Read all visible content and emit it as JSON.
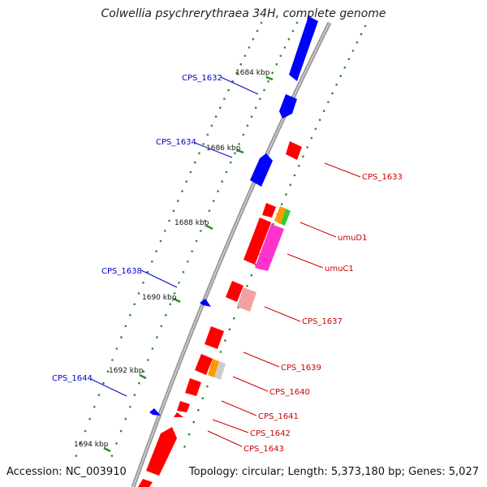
{
  "title": "Colwellia psychrerythraea 34H, complete genome",
  "footer": {
    "accession": "Accession: NC_003910",
    "summary": "Topology: circular; Length: 5,373,180 bp; Genes: 5,027"
  },
  "colors": {
    "backbone": "#8c8c8c",
    "forward_strand": "#0000ff",
    "reverse_strand": "#ff0000",
    "forward_label": "#0000cc",
    "reverse_label": "#cc0000",
    "tick": "#2b8a2b",
    "rrna_orange": "#ff9900",
    "rrna_green": "#33cc33",
    "magenta": "#ff33cc",
    "pink": "#f4a0a0",
    "gray": "#cccccc"
  },
  "kbp_ticks": [
    "1684 kbp",
    "1686 kbp",
    "1688 kbp",
    "1690 kbp",
    "1692 kbp",
    "1694 kbp"
  ],
  "forward_genes": [
    "CPS_1632",
    "CPS_1634",
    "CPS_1638",
    "CPS_1644"
  ],
  "reverse_genes": [
    "CPS_1633",
    "umuD1",
    "umuC1",
    "CPS_1637",
    "CPS_1639",
    "CPS_1640",
    "CPS_1641",
    "CPS_1642",
    "CPS_1643"
  ]
}
